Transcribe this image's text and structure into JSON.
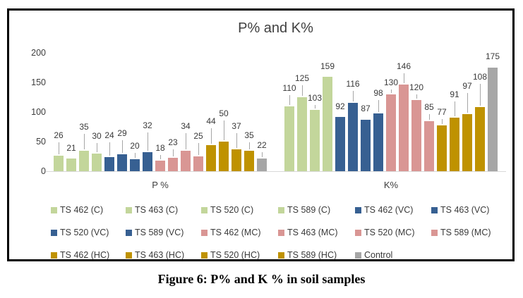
{
  "figure": {
    "caption": "Figure 6: P% and K % in soil samples"
  },
  "chart_data": {
    "type": "bar",
    "title": "P% and K%",
    "xlabel": "",
    "ylabel": "",
    "ylim": [
      0,
      200
    ],
    "yticks": [
      0,
      50,
      100,
      150,
      200
    ],
    "grid": false,
    "legend_position": "bottom",
    "categories": [
      "P %",
      "K%"
    ],
    "series": [
      {
        "name": "TS 462 (C)",
        "color": "#c3d69b",
        "values": [
          26,
          110
        ]
      },
      {
        "name": "TS 463 (C)",
        "color": "#c3d69b",
        "values": [
          21,
          125
        ]
      },
      {
        "name": "TS 520 (C)",
        "color": "#c3d69b",
        "values": [
          35,
          103
        ]
      },
      {
        "name": "TS 589 (C)",
        "color": "#c3d69b",
        "values": [
          30,
          159
        ]
      },
      {
        "name": "TS 462 (VC)",
        "color": "#376092",
        "values": [
          24,
          92
        ]
      },
      {
        "name": "TS 463 (VC)",
        "color": "#376092",
        "values": [
          29,
          116
        ]
      },
      {
        "name": "TS 520 (VC)",
        "color": "#376092",
        "values": [
          20,
          87
        ]
      },
      {
        "name": "TS 589 (VC)",
        "color": "#376092",
        "values": [
          32,
          98
        ]
      },
      {
        "name": "TS 462 (MC)",
        "color": "#d99694",
        "values": [
          18,
          130
        ]
      },
      {
        "name": "TS 463 (MC)",
        "color": "#d99694",
        "values": [
          23,
          146
        ]
      },
      {
        "name": "TS 520 (MC)",
        "color": "#d99694",
        "values": [
          34,
          120
        ]
      },
      {
        "name": "TS 589 (MC)",
        "color": "#d99694",
        "values": [
          25,
          85
        ]
      },
      {
        "name": "TS 462 (HC)",
        "color": "#bf9200",
        "values": [
          44,
          77
        ]
      },
      {
        "name": "TS 463 (HC)",
        "color": "#bf9200",
        "values": [
          50,
          91
        ]
      },
      {
        "name": "TS 520 (HC)",
        "color": "#bf9200",
        "values": [
          37,
          97
        ]
      },
      {
        "name": "TS 589 (HC)",
        "color": "#bf9200",
        "values": [
          35,
          108
        ]
      },
      {
        "name": "Control",
        "color": "#a6a6a6",
        "values": [
          22,
          175
        ]
      }
    ],
    "label_raises": [
      [
        22,
        8,
        27,
        18,
        24,
        23,
        12,
        31,
        11,
        15,
        28,
        22,
        27,
        33,
        26,
        15,
        12
      ],
      [
        19,
        20,
        10,
        8,
        8,
        20,
        9,
        22,
        10,
        19,
        11,
        13,
        12,
        26,
        33,
        36,
        9
      ]
    ],
    "axis_color": "#d9d9d9",
    "text_color": "#3d3d3d"
  }
}
